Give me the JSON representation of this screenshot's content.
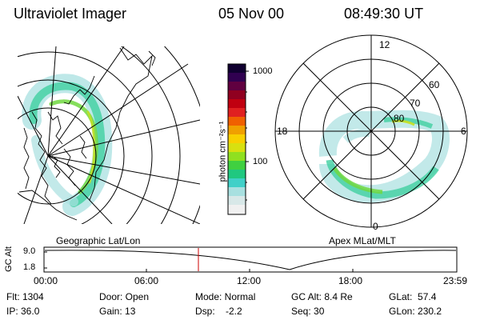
{
  "header": {
    "instrument": "Ultraviolet Imager",
    "date": "05 Nov 00",
    "time": "08:49:30 UT"
  },
  "panels": {
    "left_caption": "Geographic Lat/Lon",
    "right_caption": "Apex MLat/MLT"
  },
  "colorbar": {
    "unit_label": "photon cm⁻²s⁻¹",
    "ticks": [
      "1000",
      "100"
    ],
    "scale": "log",
    "colors": [
      "#f0f0f0",
      "#d8e8e8",
      "#a8e0e0",
      "#40d0c8",
      "#20c880",
      "#40d040",
      "#90e020",
      "#d8e010",
      "#f8d000",
      "#f0a000",
      "#f06000",
      "#e02020",
      "#c00010",
      "#900020",
      "#600040",
      "#300050",
      "#100030"
    ]
  },
  "polar": {
    "mlt_labels": {
      "top": "12",
      "left": "18",
      "right": "6",
      "bottom": "0"
    },
    "lat_labels": [
      "60",
      "70",
      "80"
    ]
  },
  "altitude_plot": {
    "ylabel": "GC Alt",
    "yticks": [
      "9.0",
      "1.8"
    ],
    "xticks": [
      "00:00",
      "06:00",
      "12:00",
      "18:00",
      "23:59"
    ],
    "marker_color": "#cc0000"
  },
  "info": {
    "flt": "Flt: 1304",
    "ip": "IP: 36.0",
    "door": "Door: Open",
    "gain": "Gain: 13",
    "mode": "Mode: Normal",
    "dsp": "Dsp:    -2.2",
    "gc_alt": "GC Alt: 8.4 Re",
    "seq": "Seq: 30",
    "glat": "GLat:  57.4",
    "glon": "GLon: 230.2"
  }
}
